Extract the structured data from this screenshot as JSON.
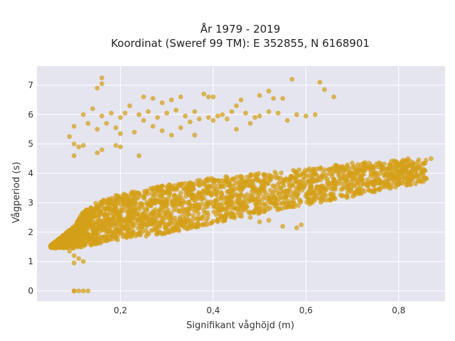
{
  "chart_data": {
    "type": "scatter",
    "title_line1": "År 1979 - 2019",
    "title_line2": "Koordinat (Sweref 99 TM): E 352855, N 6168901",
    "xlabel": "Signifikant våghöjd (m)",
    "ylabel": "Vågperiod (s)",
    "xlim": [
      0.02,
      0.9
    ],
    "ylim": [
      -0.35,
      7.65
    ],
    "x_ticks": [
      0.2,
      0.4,
      0.6,
      0.8
    ],
    "x_tick_labels": [
      "0,2",
      "0,4",
      "0,6",
      "0,8"
    ],
    "y_ticks": [
      0,
      1,
      2,
      3,
      4,
      5,
      6,
      7
    ],
    "y_tick_labels": [
      "0",
      "1",
      "2",
      "3",
      "4",
      "5",
      "6",
      "7"
    ],
    "grid": true,
    "colors": {
      "marker": "#D4A017",
      "plot_bg": "#E5E5F0",
      "grid": "#ffffff"
    },
    "series": [
      {
        "dense_band": {
          "lower": [
            [
              0.05,
              1.48
            ],
            [
              0.1,
              1.45
            ],
            [
              0.15,
              1.6
            ],
            [
              0.2,
              1.75
            ],
            [
              0.3,
              1.95
            ],
            [
              0.4,
              2.3
            ],
            [
              0.5,
              2.65
            ],
            [
              0.6,
              2.9
            ],
            [
              0.7,
              3.2
            ],
            [
              0.8,
              3.55
            ],
            [
              0.86,
              3.7
            ]
          ],
          "upper": [
            [
              0.05,
              1.55
            ],
            [
              0.1,
              2.2
            ],
            [
              0.12,
              2.7
            ],
            [
              0.15,
              3.05
            ],
            [
              0.2,
              3.3
            ],
            [
              0.3,
              3.6
            ],
            [
              0.4,
              3.85
            ],
            [
              0.5,
              4.0
            ],
            [
              0.6,
              4.15
            ],
            [
              0.7,
              4.35
            ],
            [
              0.8,
              4.45
            ],
            [
              0.86,
              4.5
            ]
          ]
        },
        "points": [
          [
            0.16,
            7.25
          ],
          [
            0.16,
            7.05
          ],
          [
            0.15,
            6.9
          ],
          [
            0.22,
            6.3
          ],
          [
            0.25,
            6.6
          ],
          [
            0.27,
            6.55
          ],
          [
            0.29,
            6.4
          ],
          [
            0.31,
            6.5
          ],
          [
            0.33,
            6.6
          ],
          [
            0.38,
            6.7
          ],
          [
            0.39,
            6.6
          ],
          [
            0.4,
            6.6
          ],
          [
            0.46,
            6.5
          ],
          [
            0.5,
            6.65
          ],
          [
            0.53,
            6.55
          ],
          [
            0.55,
            6.55
          ],
          [
            0.57,
            7.2
          ],
          [
            0.63,
            7.1
          ],
          [
            0.64,
            6.85
          ],
          [
            0.66,
            6.6
          ],
          [
            0.52,
            6.8
          ],
          [
            0.45,
            6.3
          ],
          [
            0.12,
            6.0
          ],
          [
            0.14,
            6.2
          ],
          [
            0.16,
            5.95
          ],
          [
            0.18,
            6.05
          ],
          [
            0.2,
            5.9
          ],
          [
            0.21,
            6.05
          ],
          [
            0.24,
            6.0
          ],
          [
            0.26,
            6.1
          ],
          [
            0.28,
            5.9
          ],
          [
            0.3,
            6.05
          ],
          [
            0.32,
            6.15
          ],
          [
            0.34,
            5.95
          ],
          [
            0.36,
            6.1
          ],
          [
            0.37,
            5.85
          ],
          [
            0.39,
            5.9
          ],
          [
            0.41,
            5.95
          ],
          [
            0.42,
            6.0
          ],
          [
            0.44,
            6.1
          ],
          [
            0.47,
            6.05
          ],
          [
            0.49,
            5.9
          ],
          [
            0.5,
            5.95
          ],
          [
            0.52,
            6.1
          ],
          [
            0.54,
            6.05
          ],
          [
            0.56,
            5.8
          ],
          [
            0.58,
            6.0
          ],
          [
            0.6,
            5.95
          ],
          [
            0.62,
            6.0
          ],
          [
            0.43,
            5.85
          ],
          [
            0.35,
            5.75
          ],
          [
            0.1,
            5.6
          ],
          [
            0.13,
            5.7
          ],
          [
            0.15,
            5.5
          ],
          [
            0.17,
            5.7
          ],
          [
            0.19,
            5.55
          ],
          [
            0.2,
            5.35
          ],
          [
            0.23,
            5.4
          ],
          [
            0.25,
            5.8
          ],
          [
            0.27,
            5.6
          ],
          [
            0.29,
            5.45
          ],
          [
            0.31,
            5.3
          ],
          [
            0.33,
            5.55
          ],
          [
            0.36,
            5.3
          ],
          [
            0.4,
            5.8
          ],
          [
            0.48,
            5.7
          ],
          [
            0.45,
            5.5
          ],
          [
            0.09,
            5.25
          ],
          [
            0.1,
            5.0
          ],
          [
            0.11,
            4.9
          ],
          [
            0.12,
            4.95
          ],
          [
            0.1,
            4.6
          ],
          [
            0.15,
            4.7
          ],
          [
            0.16,
            4.8
          ],
          [
            0.19,
            4.95
          ],
          [
            0.2,
            4.9
          ],
          [
            0.24,
            4.6
          ],
          [
            0.08,
            1.55
          ],
          [
            0.07,
            1.5
          ],
          [
            0.06,
            1.45
          ],
          [
            0.09,
            1.35
          ],
          [
            0.1,
            1.2
          ],
          [
            0.11,
            1.1
          ],
          [
            0.1,
            0.95
          ],
          [
            0.12,
            1.0
          ],
          [
            0.1,
            0.0
          ],
          [
            0.11,
            0.0
          ],
          [
            0.12,
            0.0
          ],
          [
            0.13,
            0.0
          ],
          [
            0.1,
            0.0
          ],
          [
            0.55,
            2.2
          ],
          [
            0.59,
            2.25
          ],
          [
            0.58,
            2.15
          ],
          [
            0.5,
            2.35
          ],
          [
            0.52,
            2.4
          ],
          [
            0.48,
            2.5
          ],
          [
            0.62,
            3.75
          ],
          [
            0.66,
            3.8
          ],
          [
            0.7,
            3.85
          ],
          [
            0.74,
            3.9
          ],
          [
            0.76,
            4.0
          ],
          [
            0.78,
            3.95
          ],
          [
            0.8,
            3.8
          ],
          [
            0.82,
            4.5
          ],
          [
            0.84,
            4.2
          ],
          [
            0.85,
            4.05
          ],
          [
            0.87,
            4.5
          ],
          [
            0.72,
            4.3
          ],
          [
            0.68,
            4.1
          ]
        ]
      }
    ]
  }
}
